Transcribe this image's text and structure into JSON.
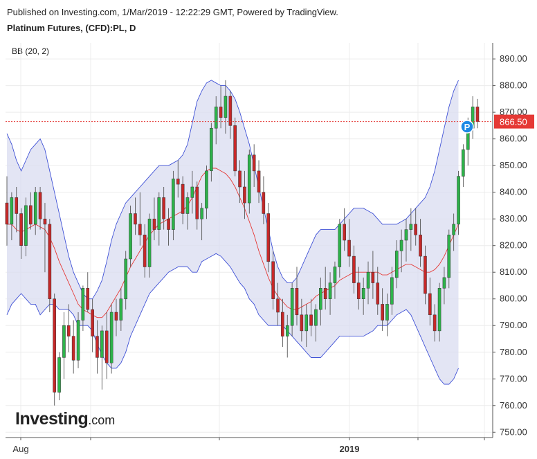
{
  "header": {
    "published_line": "Published on Investing.com, 1/Mar/2019 - 12:22:29 GMT, Powered by TradingView.",
    "instrument_line": "Platinum Futures, (CFD):PL, D"
  },
  "study_label": "BB (20, 2)",
  "logo": {
    "brand": "Investing",
    "suffix": ".com"
  },
  "colors": {
    "up_candle": "#2db34a",
    "down_candle": "#c62828",
    "band_line": "#3f51d6",
    "band_fill": "#dadcf0",
    "basis_line": "#e53935",
    "price_line": "#e53935",
    "price_label_bg": "#e53935",
    "marker": "#1e88e5"
  },
  "chart_data": {
    "type": "candlestick",
    "y_axis": {
      "min": 748,
      "max": 896,
      "ticks": [
        "890.00",
        "880.00",
        "870.00",
        "860.00",
        "850.00",
        "840.00",
        "830.00",
        "820.00",
        "810.00",
        "800.00",
        "790.00",
        "780.00",
        "770.00",
        "760.00",
        "750.00"
      ]
    },
    "x_axis": {
      "tick_labels": [
        "Aug",
        "",
        "",
        "2019",
        "",
        ""
      ]
    },
    "grid": true,
    "last_price": {
      "value": 866.5,
      "label": "866.50"
    },
    "marker_label": "P",
    "candles": [
      [
        836,
        846,
        820,
        828
      ],
      [
        828,
        840,
        822,
        838
      ],
      [
        838,
        842,
        825,
        832
      ],
      [
        832,
        834,
        815,
        820
      ],
      [
        820,
        838,
        816,
        835
      ],
      [
        835,
        840,
        826,
        828
      ],
      [
        828,
        842,
        824,
        840
      ],
      [
        840,
        842,
        826,
        830
      ],
      [
        830,
        836,
        810,
        828
      ],
      [
        828,
        830,
        795,
        800
      ],
      [
        800,
        802,
        760,
        765
      ],
      [
        765,
        780,
        762,
        778
      ],
      [
        778,
        795,
        770,
        790
      ],
      [
        790,
        798,
        780,
        786
      ],
      [
        786,
        792,
        772,
        777
      ],
      [
        777,
        795,
        774,
        792
      ],
      [
        792,
        805,
        788,
        804
      ],
      [
        804,
        810,
        795,
        796
      ],
      [
        796,
        800,
        780,
        786
      ],
      [
        786,
        792,
        772,
        778
      ],
      [
        778,
        790,
        766,
        788
      ],
      [
        788,
        795,
        770,
        776
      ],
      [
        776,
        798,
        772,
        795
      ],
      [
        795,
        800,
        786,
        792
      ],
      [
        792,
        804,
        788,
        800
      ],
      [
        800,
        818,
        796,
        815
      ],
      [
        815,
        835,
        812,
        832
      ],
      [
        832,
        838,
        824,
        828
      ],
      [
        828,
        840,
        820,
        824
      ],
      [
        824,
        828,
        808,
        812
      ],
      [
        812,
        832,
        808,
        830
      ],
      [
        830,
        838,
        822,
        826
      ],
      [
        826,
        840,
        820,
        838
      ],
      [
        838,
        842,
        826,
        830
      ],
      [
        830,
        834,
        820,
        826
      ],
      [
        826,
        848,
        822,
        845
      ],
      [
        845,
        852,
        838,
        843
      ],
      [
        843,
        846,
        828,
        832
      ],
      [
        832,
        840,
        826,
        838
      ],
      [
        838,
        848,
        832,
        842
      ],
      [
        842,
        844,
        826,
        830
      ],
      [
        830,
        836,
        822,
        834
      ],
      [
        834,
        850,
        830,
        848
      ],
      [
        848,
        866,
        844,
        864
      ],
      [
        864,
        876,
        858,
        872
      ],
      [
        872,
        880,
        864,
        868
      ],
      [
        868,
        882,
        862,
        876
      ],
      [
        876,
        878,
        860,
        865
      ],
      [
        865,
        868,
        846,
        848
      ],
      [
        848,
        852,
        836,
        842
      ],
      [
        842,
        848,
        830,
        836
      ],
      [
        836,
        856,
        832,
        854
      ],
      [
        854,
        858,
        842,
        848
      ],
      [
        848,
        852,
        836,
        840
      ],
      [
        840,
        846,
        828,
        832
      ],
      [
        832,
        836,
        810,
        814
      ],
      [
        814,
        818,
        796,
        800
      ],
      [
        800,
        806,
        790,
        795
      ],
      [
        795,
        800,
        782,
        786
      ],
      [
        786,
        794,
        778,
        790
      ],
      [
        790,
        806,
        786,
        804
      ],
      [
        804,
        812,
        790,
        794
      ],
      [
        794,
        800,
        784,
        788
      ],
      [
        788,
        798,
        782,
        794
      ],
      [
        794,
        800,
        786,
        790
      ],
      [
        790,
        798,
        784,
        796
      ],
      [
        796,
        808,
        790,
        804
      ],
      [
        804,
        812,
        796,
        800
      ],
      [
        800,
        810,
        794,
        806
      ],
      [
        806,
        814,
        800,
        812
      ],
      [
        812,
        830,
        808,
        828
      ],
      [
        828,
        834,
        818,
        822
      ],
      [
        822,
        830,
        812,
        816
      ],
      [
        816,
        820,
        802,
        806
      ],
      [
        806,
        812,
        796,
        800
      ],
      [
        800,
        808,
        794,
        804
      ],
      [
        804,
        814,
        798,
        810
      ],
      [
        810,
        818,
        800,
        806
      ],
      [
        806,
        812,
        794,
        798
      ],
      [
        798,
        804,
        788,
        792
      ],
      [
        792,
        802,
        786,
        798
      ],
      [
        798,
        812,
        794,
        808
      ],
      [
        808,
        822,
        804,
        818
      ],
      [
        818,
        826,
        810,
        822
      ],
      [
        822,
        830,
        814,
        826
      ],
      [
        826,
        834,
        818,
        828
      ],
      [
        828,
        834,
        820,
        824
      ],
      [
        824,
        830,
        812,
        816
      ],
      [
        816,
        820,
        798,
        802
      ],
      [
        802,
        808,
        790,
        794
      ],
      [
        794,
        798,
        784,
        788
      ],
      [
        788,
        806,
        784,
        804
      ],
      [
        804,
        812,
        798,
        808
      ],
      [
        808,
        826,
        804,
        824
      ],
      [
        824,
        832,
        818,
        828
      ],
      [
        828,
        848,
        824,
        846
      ],
      [
        846,
        858,
        842,
        856
      ],
      [
        856,
        868,
        850,
        864
      ],
      [
        864,
        876,
        860,
        872
      ],
      [
        872,
        875,
        864,
        866.5
      ]
    ],
    "bb_upper": [
      862,
      858,
      852,
      848,
      852,
      856,
      858,
      860,
      856,
      848,
      840,
      832,
      824,
      816,
      810,
      806,
      802,
      800,
      800,
      803,
      807,
      814,
      822,
      828,
      832,
      836,
      838,
      840,
      842,
      844,
      846,
      848,
      850,
      850,
      850,
      851,
      852,
      854,
      858,
      866,
      874,
      878,
      881,
      882,
      881,
      880,
      880,
      878,
      875,
      870,
      864,
      858,
      850,
      842,
      834,
      826,
      818,
      812,
      808,
      806,
      806,
      808,
      812,
      816,
      820,
      824,
      826,
      826,
      826,
      826,
      828,
      830,
      832,
      834,
      834,
      834,
      833,
      832,
      830,
      828,
      828,
      828,
      828,
      829,
      830,
      832,
      834,
      836,
      838,
      842,
      848,
      856,
      864,
      872,
      878,
      882
    ],
    "bb_basis": [
      828,
      828,
      826,
      825,
      826,
      827,
      828,
      827,
      826,
      823,
      819,
      814,
      810,
      806,
      802,
      798,
      796,
      795,
      794,
      793,
      793,
      795,
      798,
      801,
      804,
      808,
      812,
      815,
      818,
      821,
      824,
      826,
      828,
      829,
      830,
      831,
      832,
      833,
      835,
      838,
      842,
      846,
      848,
      849,
      849,
      848,
      847,
      845,
      842,
      838,
      834,
      829,
      824,
      818,
      813,
      808,
      804,
      801,
      799,
      797,
      796,
      796,
      797,
      798,
      799,
      801,
      802,
      803,
      804,
      805,
      807,
      808,
      809,
      810,
      810,
      810,
      810,
      810,
      810,
      809,
      809,
      810,
      811,
      812,
      813,
      813,
      812,
      811,
      810,
      810,
      811,
      813,
      816,
      820,
      824,
      828
    ],
    "bb_lower": [
      794,
      798,
      800,
      802,
      800,
      798,
      798,
      794,
      796,
      798,
      798,
      796,
      796,
      796,
      794,
      790,
      790,
      790,
      788,
      783,
      779,
      776,
      774,
      774,
      776,
      780,
      786,
      790,
      794,
      798,
      802,
      804,
      806,
      808,
      810,
      811,
      812,
      812,
      812,
      810,
      810,
      814,
      815,
      816,
      817,
      816,
      814,
      812,
      809,
      806,
      804,
      800,
      798,
      794,
      792,
      790,
      790,
      790,
      790,
      788,
      786,
      784,
      782,
      780,
      778,
      778,
      778,
      780,
      782,
      784,
      786,
      786,
      786,
      786,
      786,
      786,
      787,
      788,
      790,
      790,
      790,
      792,
      794,
      795,
      796,
      794,
      790,
      786,
      782,
      778,
      774,
      770,
      768,
      768,
      770,
      774
    ]
  }
}
